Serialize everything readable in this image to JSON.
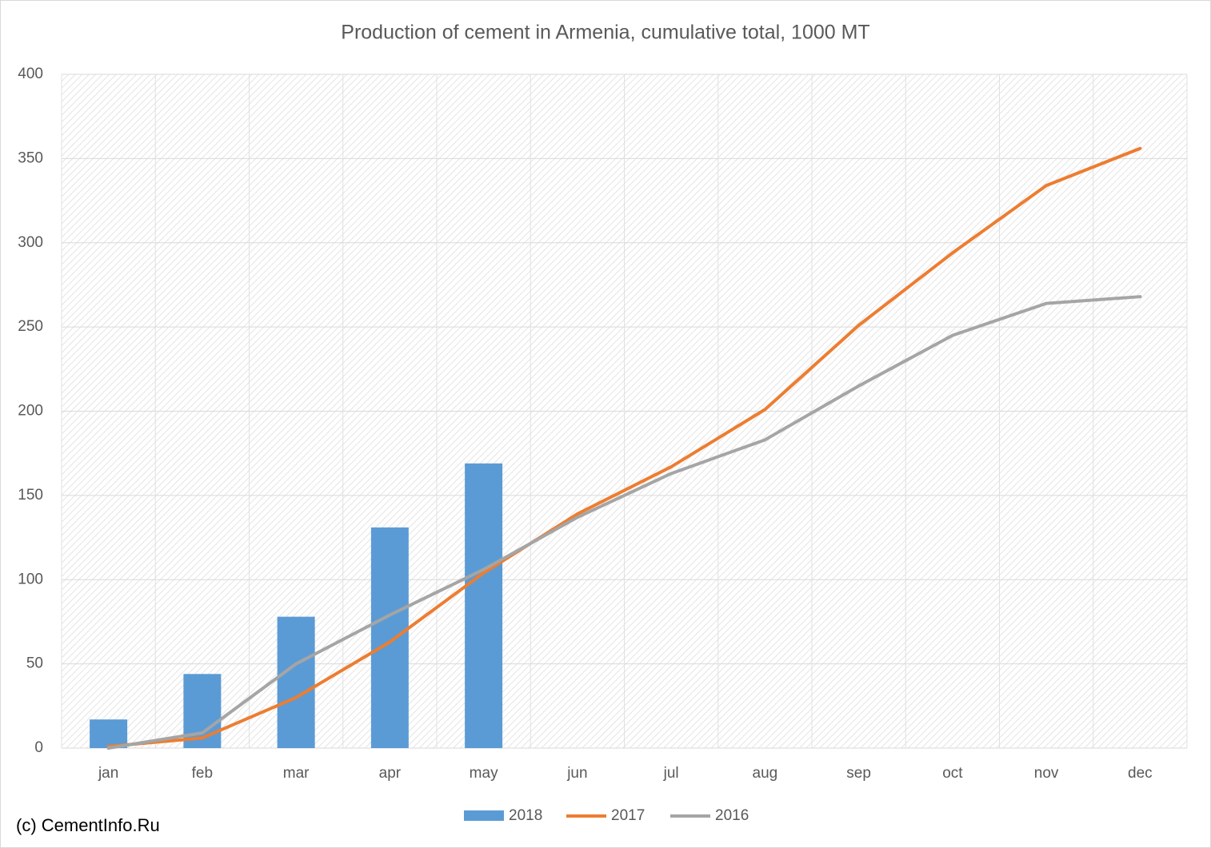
{
  "chart_data": {
    "type": "bar",
    "title": "Production of cement in Armenia, cumulative total, 1000 MT",
    "annotation": "(c) CementInfo.Ru",
    "categories": [
      "jan",
      "feb",
      "mar",
      "apr",
      "may",
      "jun",
      "jul",
      "aug",
      "sep",
      "oct",
      "nov",
      "dec"
    ],
    "series": [
      {
        "name": "2018",
        "type": "bar",
        "color": "#5b9bd5",
        "values": [
          17,
          44,
          78,
          131,
          169,
          null,
          null,
          null,
          null,
          null,
          null,
          null
        ]
      },
      {
        "name": "2017",
        "type": "line",
        "color": "#ed7d31",
        "values": [
          1,
          6,
          30,
          63,
          104,
          139,
          167,
          201,
          251,
          294,
          334,
          356
        ]
      },
      {
        "name": "2016",
        "type": "line",
        "color": "#a5a5a5",
        "values": [
          0,
          9,
          50,
          79,
          106,
          137,
          163,
          183,
          215,
          245,
          264,
          268
        ]
      }
    ],
    "ylim": [
      0,
      400
    ],
    "yticks": [
      0,
      50,
      100,
      150,
      200,
      250,
      300,
      350,
      400
    ],
    "grid": true,
    "legend": "bottom"
  }
}
